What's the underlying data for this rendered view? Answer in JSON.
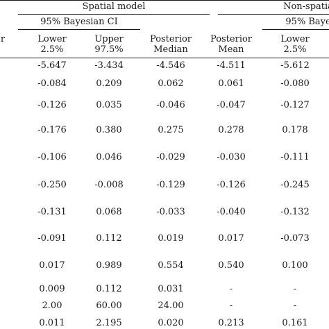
{
  "header": {
    "clipped_label": "r",
    "spatial_model": "Spatial model",
    "non_spatial_model": "Non-spatia",
    "ci_spatial": "95% Bayesian CI",
    "ci_nonspatial": "95% Baye",
    "columns": [
      {
        "line1": "Lower",
        "line2": "2.5%"
      },
      {
        "line1": "Upper",
        "line2": "97.5%"
      },
      {
        "line1": "Posterior",
        "line2": "Median"
      },
      {
        "line1": "Posterior",
        "line2": "Mean"
      },
      {
        "line1": "Lower",
        "line2": "2.5%"
      }
    ]
  },
  "rows": [
    [
      "-5.647",
      "-3.434",
      "-4.546",
      "-4.511",
      "-5.612"
    ],
    [
      "-0.084",
      "0.209",
      "0.062",
      "0.061",
      "-0.080"
    ],
    [
      "-0.126",
      "0.035",
      "-0.046",
      "-0.047",
      "-0.127"
    ],
    [
      "-0.176",
      "0.380",
      "0.275",
      "0.278",
      "0.178"
    ],
    [
      "-0.106",
      "0.046",
      "-0.029",
      "-0.030",
      "-0.111"
    ],
    [
      "-0.250",
      "-0.008",
      "-0.129",
      "-0.126",
      "-0.245"
    ],
    [
      "-0.131",
      "0.068",
      "-0.033",
      "-0.040",
      "-0.132"
    ],
    [
      "-0.091",
      "0.112",
      "0.019",
      "0.017",
      "-0.073"
    ],
    [
      "0.017",
      "0.989",
      "0.554",
      "0.540",
      "0.100"
    ],
    [
      "0.009",
      "0.112",
      "0.031",
      "-",
      "-"
    ],
    [
      "2.00",
      "60.00",
      "24.00",
      "-",
      "-"
    ],
    [
      "0.011",
      "2.195",
      "0.020",
      "0.213",
      "0.161"
    ]
  ]
}
